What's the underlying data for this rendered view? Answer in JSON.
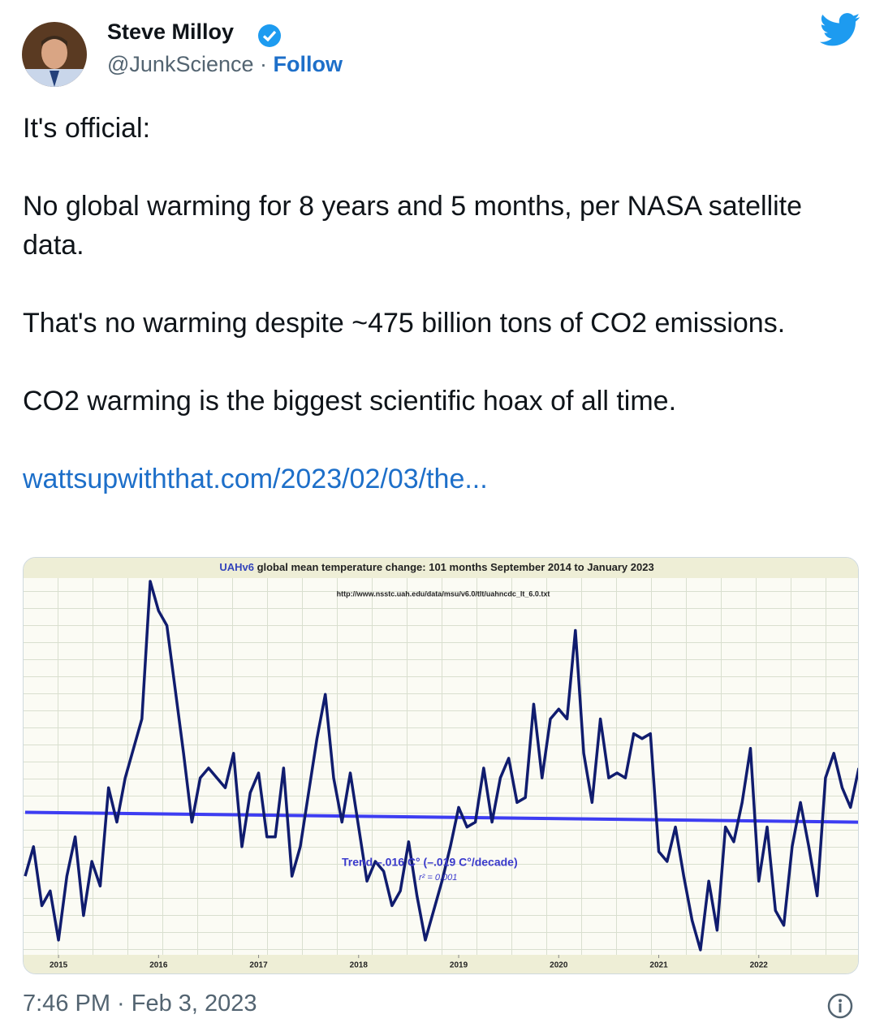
{
  "tweet": {
    "name": "Steve Milloy",
    "handle": "@JunkScience",
    "separator": "·",
    "follow": "Follow",
    "paragraphs": [
      "It's official:",
      "No global warming for 8 years and 5 months, per NASA satellite data.",
      "That's no warming despite ~475 billion tons of CO2 emissions.",
      "CO2 warming is the biggest scientific hoax of all time."
    ],
    "link": "wattsupwiththat.com/2023/02/03/the...",
    "timestamp": "7:46 PM · Feb 3, 2023"
  },
  "chart_data": {
    "type": "line",
    "title_prefix": "UAHv6",
    "title": "global mean temperature change: 101 months September 2014 to January 2023",
    "subtitle": "http://www.nsstc.uah.edu/data/msu/v6.0/tlt/uahncdc_lt_6.0.txt",
    "annotations": [
      "Trend –.016 C° (–.019 C°/decade)",
      "r² = 0.001"
    ],
    "xlim": [
      0,
      100
    ],
    "xticks": [
      {
        "value": 4,
        "label": "2015"
      },
      {
        "value": 16,
        "label": "2016"
      },
      {
        "value": 28,
        "label": "2017"
      },
      {
        "value": 40,
        "label": "2018"
      },
      {
        "value": 52,
        "label": "2019"
      },
      {
        "value": 64,
        "label": "2020"
      },
      {
        "value": 76,
        "label": "2021"
      },
      {
        "value": 88,
        "label": "2022"
      }
    ],
    "ylim": [
      -0.06,
      0.7
    ],
    "series": [
      {
        "color": "#101c6e",
        "values": [
          0.1,
          0.16,
          0.04,
          0.07,
          -0.03,
          0.1,
          0.18,
          0.02,
          0.13,
          0.08,
          0.28,
          0.21,
          0.3,
          0.36,
          0.42,
          0.7,
          0.64,
          0.61,
          0.48,
          0.35,
          0.21,
          0.3,
          0.32,
          0.3,
          0.28,
          0.35,
          0.16,
          0.27,
          0.31,
          0.18,
          0.18,
          0.32,
          0.1,
          0.16,
          0.27,
          0.38,
          0.47,
          0.3,
          0.21,
          0.31,
          0.2,
          0.09,
          0.13,
          0.11,
          0.04,
          0.07,
          0.17,
          0.06,
          -0.03,
          0.03,
          0.09,
          0.16,
          0.24,
          0.2,
          0.21,
          0.32,
          0.21,
          0.3,
          0.34,
          0.25,
          0.26,
          0.45,
          0.3,
          0.42,
          0.44,
          0.42,
          0.6,
          0.35,
          0.25,
          0.42,
          0.3,
          0.31,
          0.3,
          0.39,
          0.38,
          0.39,
          0.15,
          0.13,
          0.2,
          0.1,
          0.01,
          -0.05,
          0.09,
          -0.01,
          0.2,
          0.17,
          0.25,
          0.36,
          0.09,
          0.2,
          0.03,
          0.0,
          0.16,
          0.25,
          0.16,
          0.06,
          0.3,
          0.35,
          0.28,
          0.24,
          0.32
        ]
      }
    ],
    "trend_line": {
      "color": "#3d3df2",
      "values": [
        0.23,
        0.21
      ]
    }
  }
}
